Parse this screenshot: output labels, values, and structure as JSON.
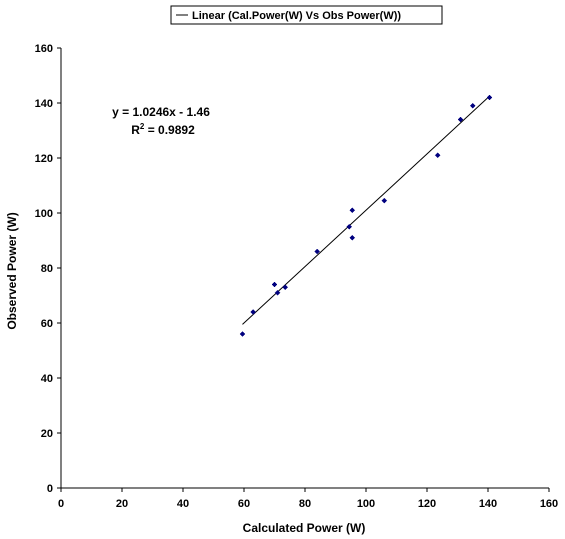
{
  "chart_data": {
    "type": "scatter",
    "xlabel": "Calculated Power (W)",
    "ylabel": "Observed Power (W)",
    "xlim": [
      0,
      160
    ],
    "ylim": [
      0,
      160
    ],
    "x_ticks": [
      "0",
      "20",
      "40",
      "60",
      "80",
      "100",
      "120",
      "140",
      "160"
    ],
    "y_ticks": [
      "0",
      "20",
      "40",
      "60",
      "80",
      "100",
      "120",
      "140",
      "160"
    ],
    "grid": false,
    "legend": {
      "label": "Linear (Cal.Power(W) Vs Obs Power(W))",
      "placement": "top-right"
    },
    "series": [
      {
        "name": "",
        "color": "#00007f",
        "points": [
          {
            "x": 59.5,
            "y": 56
          },
          {
            "x": 63,
            "y": 64
          },
          {
            "x": 70,
            "y": 74
          },
          {
            "x": 71,
            "y": 71
          },
          {
            "x": 73.5,
            "y": 73
          },
          {
            "x": 84,
            "y": 86
          },
          {
            "x": 94.5,
            "y": 95
          },
          {
            "x": 95.5,
            "y": 101
          },
          {
            "x": 95.5,
            "y": 91
          },
          {
            "x": 106,
            "y": 104.5
          },
          {
            "x": 123.5,
            "y": 121
          },
          {
            "x": 131,
            "y": 134
          },
          {
            "x": 135,
            "y": 139
          },
          {
            "x": 140.5,
            "y": 142
          }
        ]
      }
    ],
    "trendline": {
      "slope": 1.0246,
      "intercept": -1.46,
      "x_range": [
        59.5,
        140.5
      ],
      "equation": "y = 1.0246x - 1.46",
      "r2_prefix": "R",
      "r2_exp": "2",
      "r2_value": " = 0.9892",
      "color": "#000000"
    }
  }
}
